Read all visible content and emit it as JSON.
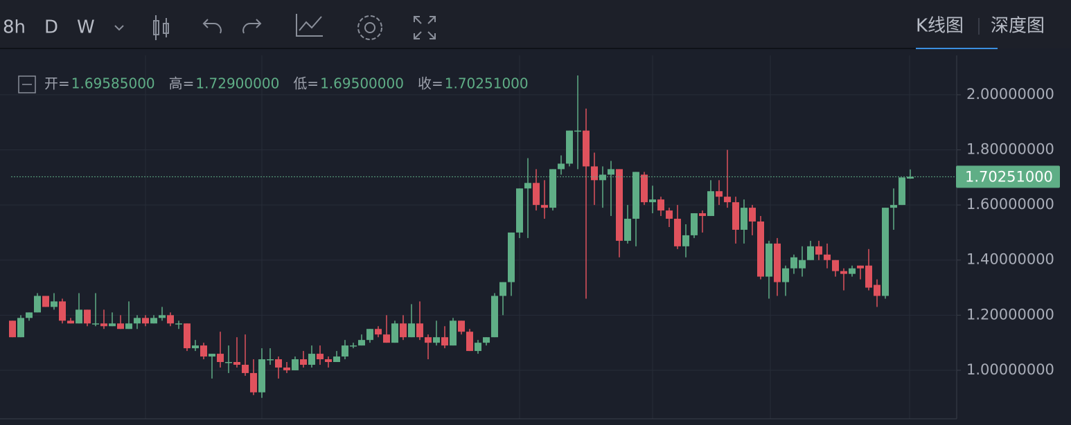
{
  "toolbar": {
    "intervals": [
      "8h",
      "D",
      "W"
    ],
    "active_interval": 1,
    "views": [
      "K线图",
      "深度图"
    ],
    "active_view": 0
  },
  "chart_data": {
    "type": "candlestick",
    "open": [
      1.18,
      1.12,
      1.19,
      1.21,
      1.27,
      1.23,
      1.25,
      1.18,
      1.17,
      1.22,
      1.17,
      1.17,
      1.16,
      1.17,
      1.15,
      1.17,
      1.19,
      1.17,
      1.19,
      1.2,
      1.17,
      1.17,
      1.08,
      1.09,
      1.05,
      1.06,
      1.03,
      1.03,
      1.02,
      0.99,
      0.92,
      1.04,
      1.04,
      1.01,
      1.0,
      1.04,
      1.02,
      1.06,
      1.04,
      1.03,
      1.05,
      1.09,
      1.09,
      1.11,
      1.15,
      1.13,
      1.1,
      1.17,
      1.12,
      1.17,
      1.12,
      1.1,
      1.12,
      1.09,
      1.18,
      1.14,
      1.07,
      1.1,
      1.12,
      1.27,
      1.32,
      1.5,
      1.66,
      1.68,
      1.6,
      1.59,
      1.73,
      1.75,
      1.87,
      1.87,
      1.74,
      1.69,
      1.71,
      1.73,
      1.47,
      1.55,
      1.71,
      1.61,
      1.62,
      1.58,
      1.55,
      1.45,
      1.49,
      1.57,
      1.56,
      1.65,
      1.63,
      1.61,
      1.51,
      1.59,
      1.54,
      1.34,
      1.46,
      1.32,
      1.37,
      1.37,
      1.4,
      1.45,
      1.42,
      1.4,
      1.36,
      1.35,
      1.38,
      1.38,
      1.31,
      1.27,
      1.59,
      1.6,
      1.69585
    ],
    "high": [
      1.18,
      1.2,
      1.21,
      1.28,
      1.27,
      1.28,
      1.26,
      1.19,
      1.28,
      1.22,
      1.28,
      1.22,
      1.21,
      1.2,
      1.25,
      1.2,
      1.2,
      1.2,
      1.23,
      1.21,
      1.18,
      1.17,
      1.11,
      1.1,
      1.06,
      1.14,
      1.09,
      1.12,
      1.13,
      1.04,
      1.08,
      1.08,
      1.05,
      1.03,
      1.05,
      1.07,
      1.09,
      1.09,
      1.05,
      1.07,
      1.11,
      1.1,
      1.13,
      1.15,
      1.16,
      1.2,
      1.18,
      1.2,
      1.24,
      1.25,
      1.13,
      1.18,
      1.16,
      1.19,
      1.18,
      1.15,
      1.11,
      1.12,
      1.28,
      1.32,
      1.5,
      1.66,
      1.77,
      1.73,
      1.69,
      1.73,
      1.78,
      1.87,
      2.07,
      1.95,
      1.79,
      1.74,
      1.76,
      1.73,
      1.6,
      1.72,
      1.72,
      1.67,
      1.63,
      1.59,
      1.6,
      1.53,
      1.57,
      1.58,
      1.69,
      1.69,
      1.8,
      1.63,
      1.62,
      1.6,
      1.56,
      1.47,
      1.48,
      1.38,
      1.42,
      1.45,
      1.47,
      1.47,
      1.46,
      1.4,
      1.37,
      1.38,
      1.38,
      1.44,
      1.33,
      1.59,
      1.66,
      1.7,
      1.729
    ],
    "low": [
      1.12,
      1.12,
      1.18,
      1.21,
      1.23,
      1.22,
      1.17,
      1.17,
      1.17,
      1.16,
      1.16,
      1.15,
      1.16,
      1.15,
      1.15,
      1.15,
      1.16,
      1.17,
      1.18,
      1.16,
      1.15,
      1.07,
      1.07,
      1.04,
      0.97,
      1.01,
      0.99,
      1.01,
      0.98,
      0.91,
      0.9,
      1.02,
      0.97,
      0.99,
      1.0,
      1.01,
      1.01,
      1.02,
      1.01,
      1.03,
      1.04,
      1.08,
      1.09,
      1.1,
      1.12,
      1.1,
      1.1,
      1.11,
      1.12,
      1.11,
      1.04,
      1.09,
      1.08,
      1.09,
      1.13,
      1.07,
      1.06,
      1.09,
      1.12,
      1.2,
      1.27,
      1.48,
      1.48,
      1.58,
      1.55,
      1.58,
      1.71,
      1.74,
      1.73,
      1.26,
      1.6,
      1.59,
      1.56,
      1.41,
      1.46,
      1.45,
      1.6,
      1.57,
      1.56,
      1.52,
      1.44,
      1.41,
      1.48,
      1.5,
      1.56,
      1.6,
      1.59,
      1.46,
      1.46,
      1.49,
      1.33,
      1.26,
      1.27,
      1.27,
      1.35,
      1.34,
      1.4,
      1.4,
      1.37,
      1.34,
      1.29,
      1.34,
      1.33,
      1.29,
      1.23,
      1.26,
      1.51,
      1.6,
      1.695
    ],
    "close": [
      1.12,
      1.19,
      1.21,
      1.27,
      1.23,
      1.25,
      1.18,
      1.17,
      1.22,
      1.17,
      1.17,
      1.16,
      1.17,
      1.15,
      1.17,
      1.19,
      1.17,
      1.19,
      1.2,
      1.17,
      1.17,
      1.08,
      1.09,
      1.05,
      1.06,
      1.03,
      1.03,
      1.02,
      0.99,
      0.92,
      1.04,
      1.04,
      1.01,
      1.0,
      1.04,
      1.02,
      1.06,
      1.04,
      1.03,
      1.05,
      1.09,
      1.09,
      1.11,
      1.15,
      1.13,
      1.1,
      1.17,
      1.12,
      1.17,
      1.12,
      1.1,
      1.12,
      1.09,
      1.18,
      1.14,
      1.07,
      1.1,
      1.12,
      1.27,
      1.32,
      1.5,
      1.66,
      1.68,
      1.6,
      1.59,
      1.73,
      1.75,
      1.87,
      1.87,
      1.74,
      1.69,
      1.71,
      1.73,
      1.47,
      1.55,
      1.72,
      1.61,
      1.62,
      1.58,
      1.55,
      1.45,
      1.49,
      1.57,
      1.56,
      1.65,
      1.63,
      1.61,
      1.51,
      1.59,
      1.54,
      1.34,
      1.46,
      1.32,
      1.37,
      1.41,
      1.4,
      1.45,
      1.42,
      1.4,
      1.36,
      1.35,
      1.37,
      1.37,
      1.3,
      1.27,
      1.59,
      1.6,
      1.7,
      1.70251
    ],
    "up_color": "#5fae86",
    "down_color": "#e0525d",
    "ylim": [
      0.824,
      2.143
    ],
    "yticks": [
      {
        "value": 1.0,
        "label": "1.00000000"
      },
      {
        "value": 1.2,
        "label": "1.20000000"
      },
      {
        "value": 1.4,
        "label": "1.40000000"
      },
      {
        "value": 1.6,
        "label": "1.60000000"
      },
      {
        "value": 1.8,
        "label": "1.80000000"
      },
      {
        "value": 2.0,
        "label": "2.00000000"
      }
    ],
    "grid": true,
    "last_price_label": "1.70251000",
    "ohlc_legend": [
      {
        "name": "开=",
        "value": "1.69585000"
      },
      {
        "name": "高=",
        "value": "1.72900000"
      },
      {
        "name": "低=",
        "value": "1.69500000"
      },
      {
        "name": "收=",
        "value": "1.70251000"
      }
    ]
  }
}
